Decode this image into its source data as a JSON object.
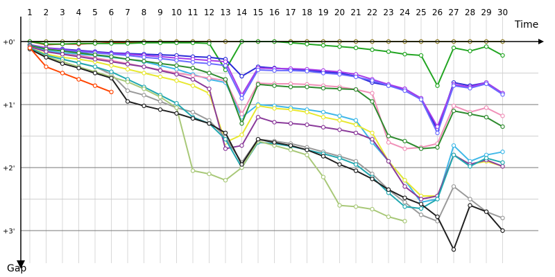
{
  "chart_data": {
    "type": "line",
    "title": "",
    "xlabel": "Time",
    "ylabel": "Gap",
    "x_ticks": [
      "1",
      "2",
      "3",
      "4",
      "5",
      "6",
      "7",
      "8",
      "9",
      "10",
      "11",
      "12",
      "13",
      "14",
      "15",
      "16",
      "17",
      "18",
      "19",
      "20",
      "21",
      "22",
      "23",
      "24",
      "25",
      "26",
      "27",
      "28",
      "29",
      "30"
    ],
    "y_ticks": [
      "+0'",
      "+1'",
      "+2'",
      "+3'"
    ],
    "y_units": "minutes",
    "ylim": [
      0,
      3.3
    ],
    "y_direction": "down",
    "grid": true,
    "pit_stop_lines": {
      "colors": [
        "#ffb0b0",
        "#b7e2a8"
      ],
      "style": "dashed"
    },
    "series": [
      {
        "color": "#e01010",
        "values": [
          0.0,
          0.05,
          0.04,
          0.04,
          0.03,
          0.02,
          0.02,
          0.01,
          0.01,
          0.0,
          0.0,
          0.0,
          0.0,
          0.0,
          0.0,
          0.0,
          0.0,
          0.0,
          0.0,
          0.0,
          0.0,
          0.0,
          0.0,
          0.0,
          0.0,
          0.0,
          0.0,
          0.0,
          0.0,
          0.0
        ]
      },
      {
        "color": "#8a8a2a",
        "values": [
          0.0,
          0.0,
          0.0,
          0.0,
          0.0,
          0.0,
          0.0,
          0.0,
          0.0,
          0.0,
          0.0,
          0.0,
          0.0,
          0.0,
          0.0,
          0.0,
          0.0,
          0.0,
          0.0,
          0.0,
          0.0,
          0.0,
          0.0,
          0.0,
          0.0,
          0.0,
          0.0,
          0.0,
          0.0,
          0.0
        ]
      },
      {
        "color": "#22a522",
        "values": [
          0.0,
          0.04,
          0.04,
          0.03,
          0.03,
          0.03,
          0.03,
          0.02,
          0.02,
          0.02,
          0.02,
          0.03,
          0.45,
          0.0,
          0.0,
          0.0,
          0.02,
          0.04,
          0.06,
          0.08,
          0.1,
          0.13,
          0.16,
          0.2,
          0.22,
          0.7,
          0.1,
          0.15,
          0.08,
          0.22
        ]
      },
      {
        "color": "#2b2bd8",
        "values": [
          0.05,
          0.1,
          0.12,
          0.14,
          0.16,
          0.18,
          0.19,
          0.2,
          0.21,
          0.22,
          0.24,
          0.25,
          0.28,
          0.55,
          0.4,
          0.42,
          0.44,
          0.45,
          0.48,
          0.5,
          0.55,
          0.65,
          0.7,
          0.75,
          0.9,
          1.4,
          0.65,
          0.7,
          0.65,
          0.82
        ]
      },
      {
        "color": "#a83be8",
        "values": [
          0.05,
          0.1,
          0.13,
          0.15,
          0.17,
          0.19,
          0.2,
          0.22,
          0.24,
          0.26,
          0.28,
          0.3,
          0.32,
          0.85,
          0.42,
          0.43,
          0.43,
          0.44,
          0.46,
          0.48,
          0.52,
          0.6,
          0.68,
          0.75,
          0.9,
          1.35,
          0.68,
          0.72,
          0.65,
          0.82
        ]
      },
      {
        "color": "#6a6aff",
        "values": [
          0.05,
          0.12,
          0.14,
          0.16,
          0.18,
          0.2,
          0.22,
          0.25,
          0.27,
          0.3,
          0.33,
          0.35,
          0.38,
          0.9,
          0.45,
          0.46,
          0.46,
          0.47,
          0.5,
          0.52,
          0.56,
          0.62,
          0.7,
          0.78,
          0.92,
          1.45,
          0.7,
          0.74,
          0.67,
          0.84
        ]
      },
      {
        "color": "#40b8e8",
        "values": [
          0.06,
          0.14,
          0.18,
          0.2,
          0.22,
          0.25,
          0.28,
          0.32,
          0.38,
          0.44,
          0.52,
          0.6,
          0.65,
          1.2,
          1.0,
          1.02,
          1.05,
          1.08,
          1.12,
          1.18,
          1.25,
          1.6,
          1.9,
          2.2,
          2.55,
          2.5,
          1.65,
          1.9,
          1.8,
          1.75
        ]
      },
      {
        "color": "#f090b8",
        "values": [
          0.08,
          0.16,
          0.2,
          0.22,
          0.26,
          0.3,
          0.35,
          0.4,
          0.45,
          0.5,
          0.54,
          0.58,
          0.62,
          1.15,
          0.66,
          0.67,
          0.67,
          0.68,
          0.7,
          0.72,
          0.76,
          0.82,
          1.6,
          1.7,
          1.68,
          1.62,
          1.02,
          1.12,
          1.05,
          1.18
        ]
      },
      {
        "color": "#2e8b2e",
        "values": [
          0.06,
          0.12,
          0.15,
          0.18,
          0.21,
          0.24,
          0.28,
          0.31,
          0.35,
          0.38,
          0.42,
          0.5,
          0.6,
          1.3,
          0.68,
          0.7,
          0.72,
          0.72,
          0.74,
          0.75,
          0.76,
          0.95,
          1.5,
          1.58,
          1.7,
          1.68,
          1.1,
          1.15,
          1.2,
          1.35
        ]
      },
      {
        "color": "#e8e830",
        "values": [
          0.1,
          0.2,
          0.25,
          0.28,
          0.32,
          0.38,
          0.44,
          0.5,
          0.56,
          0.62,
          0.7,
          0.82,
          1.6,
          1.48,
          1.02,
          1.06,
          1.08,
          1.12,
          1.2,
          1.25,
          1.32,
          1.45,
          1.9,
          2.2,
          2.45,
          2.45,
          1.8,
          1.95,
          1.9,
          1.98
        ]
      },
      {
        "color": "#8a3a9a",
        "values": [
          0.08,
          0.16,
          0.2,
          0.24,
          0.28,
          0.32,
          0.36,
          0.4,
          0.46,
          0.52,
          0.6,
          0.75,
          1.7,
          1.65,
          1.2,
          1.28,
          1.3,
          1.32,
          1.36,
          1.4,
          1.45,
          1.55,
          1.9,
          2.3,
          2.5,
          2.45,
          1.8,
          1.95,
          1.88,
          1.98
        ]
      },
      {
        "color": "#9a9a9a",
        "values": [
          0.1,
          0.22,
          0.28,
          0.34,
          0.4,
          0.52,
          0.78,
          0.85,
          0.95,
          1.05,
          1.12,
          1.25,
          1.52,
          1.92,
          1.55,
          1.58,
          1.62,
          1.68,
          1.75,
          1.82,
          1.9,
          2.1,
          2.35,
          2.55,
          2.75,
          2.85,
          2.3,
          2.5,
          2.7,
          2.8
        ]
      },
      {
        "color": "#20a8b0",
        "values": [
          0.1,
          0.22,
          0.28,
          0.34,
          0.4,
          0.48,
          0.6,
          0.72,
          0.85,
          0.98,
          1.2,
          1.3,
          1.55,
          2.0,
          1.6,
          1.62,
          1.66,
          1.72,
          1.78,
          1.85,
          1.95,
          2.15,
          2.4,
          2.62,
          2.65,
          2.5,
          1.8,
          1.98,
          1.85,
          1.92
        ]
      },
      {
        "color": "#a8c878",
        "values": [
          0.12,
          0.24,
          0.32,
          0.4,
          0.48,
          0.56,
          0.64,
          0.75,
          0.88,
          1.05,
          2.05,
          2.1,
          2.2,
          2.0,
          1.58,
          1.65,
          1.72,
          1.8,
          2.15,
          2.6,
          2.62,
          2.66,
          2.78,
          2.85,
          null,
          null,
          null,
          null,
          null,
          null
        ]
      },
      {
        "color": "#202020",
        "values": [
          0.12,
          0.25,
          0.35,
          0.42,
          0.5,
          0.58,
          0.95,
          1.02,
          1.08,
          1.14,
          1.22,
          1.3,
          1.45,
          1.95,
          1.55,
          1.6,
          1.65,
          1.72,
          1.82,
          1.95,
          2.05,
          2.18,
          2.35,
          2.48,
          2.58,
          2.78,
          3.3,
          2.6,
          2.7,
          3.0
        ]
      },
      {
        "color": "#ff4400",
        "values": [
          0.1,
          0.4,
          0.5,
          0.6,
          0.7,
          0.8,
          null,
          null,
          null,
          null,
          null,
          null,
          null,
          null,
          null,
          null,
          null,
          null,
          null,
          null,
          null,
          null,
          null,
          null,
          null,
          null,
          null,
          null,
          null,
          null
        ]
      }
    ]
  }
}
